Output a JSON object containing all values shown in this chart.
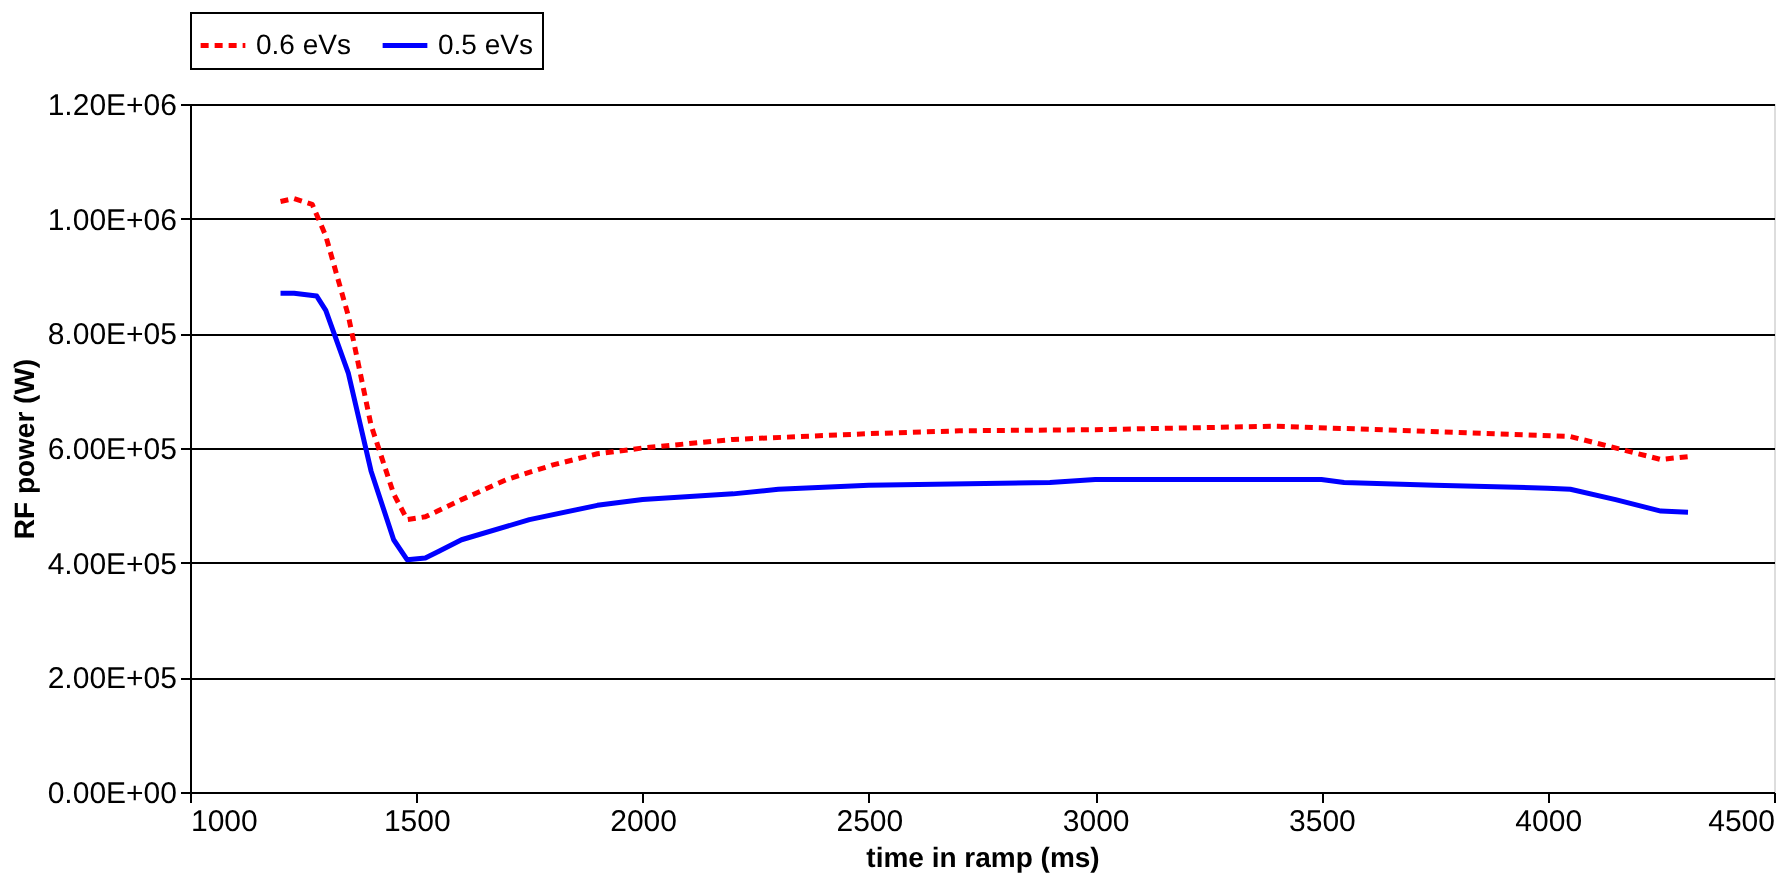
{
  "chart_data": {
    "type": "line",
    "xlabel": "time in ramp (ms)",
    "ylabel": "RF power (W)",
    "xlim": [
      1000,
      4500
    ],
    "xticks": [
      1000,
      1500,
      2000,
      2500,
      3000,
      3500,
      4000,
      4500
    ],
    "ylim": [
      0,
      1200000
    ],
    "yticks": [
      {
        "value": 0,
        "label": "0.00E+00"
      },
      {
        "value": 200000,
        "label": "2.00E+05"
      },
      {
        "value": 400000,
        "label": "4.00E+05"
      },
      {
        "value": 600000,
        "label": "6.00E+05"
      },
      {
        "value": 800000,
        "label": "8.00E+05"
      },
      {
        "value": 1000000,
        "label": "1.00E+06"
      },
      {
        "value": 1200000,
        "label": "1.20E+06"
      }
    ],
    "grid": "y",
    "legend": "top",
    "marker": "none",
    "series": [
      {
        "name": "0.6 eVs",
        "color": "#ff0000",
        "line_style": "dashed",
        "x": [
          1200,
          1230,
          1270,
          1300,
          1350,
          1400,
          1450,
          1480,
          1520,
          1600,
          1700,
          1800,
          1900,
          2000,
          2200,
          2500,
          2700,
          3000,
          3400,
          3700,
          4050,
          4100,
          4200,
          4250,
          4310
        ],
        "values": [
          1030000,
          1035000,
          1025000,
          970000,
          830000,
          640000,
          520000,
          475000,
          480000,
          510000,
          545000,
          570000,
          590000,
          600000,
          615000,
          625000,
          630000,
          632000,
          638000,
          630000,
          620000,
          610000,
          590000,
          580000,
          585000
        ]
      },
      {
        "name": "0.5 eVs",
        "color": "#0000ff",
        "line_style": "solid",
        "x": [
          1200,
          1230,
          1280,
          1300,
          1350,
          1400,
          1450,
          1480,
          1520,
          1550,
          1600,
          1750,
          1900,
          2000,
          2200,
          2300,
          2500,
          2900,
          3000,
          3500,
          3550,
          3750,
          4000,
          4050,
          4150,
          4250,
          4310
        ],
        "values": [
          870000,
          870000,
          865000,
          840000,
          730000,
          560000,
          440000,
          405000,
          408000,
          420000,
          440000,
          475000,
          500000,
          510000,
          520000,
          528000,
          535000,
          540000,
          545000,
          545000,
          540000,
          535000,
          530000,
          528000,
          510000,
          490000,
          488000
        ]
      }
    ]
  }
}
